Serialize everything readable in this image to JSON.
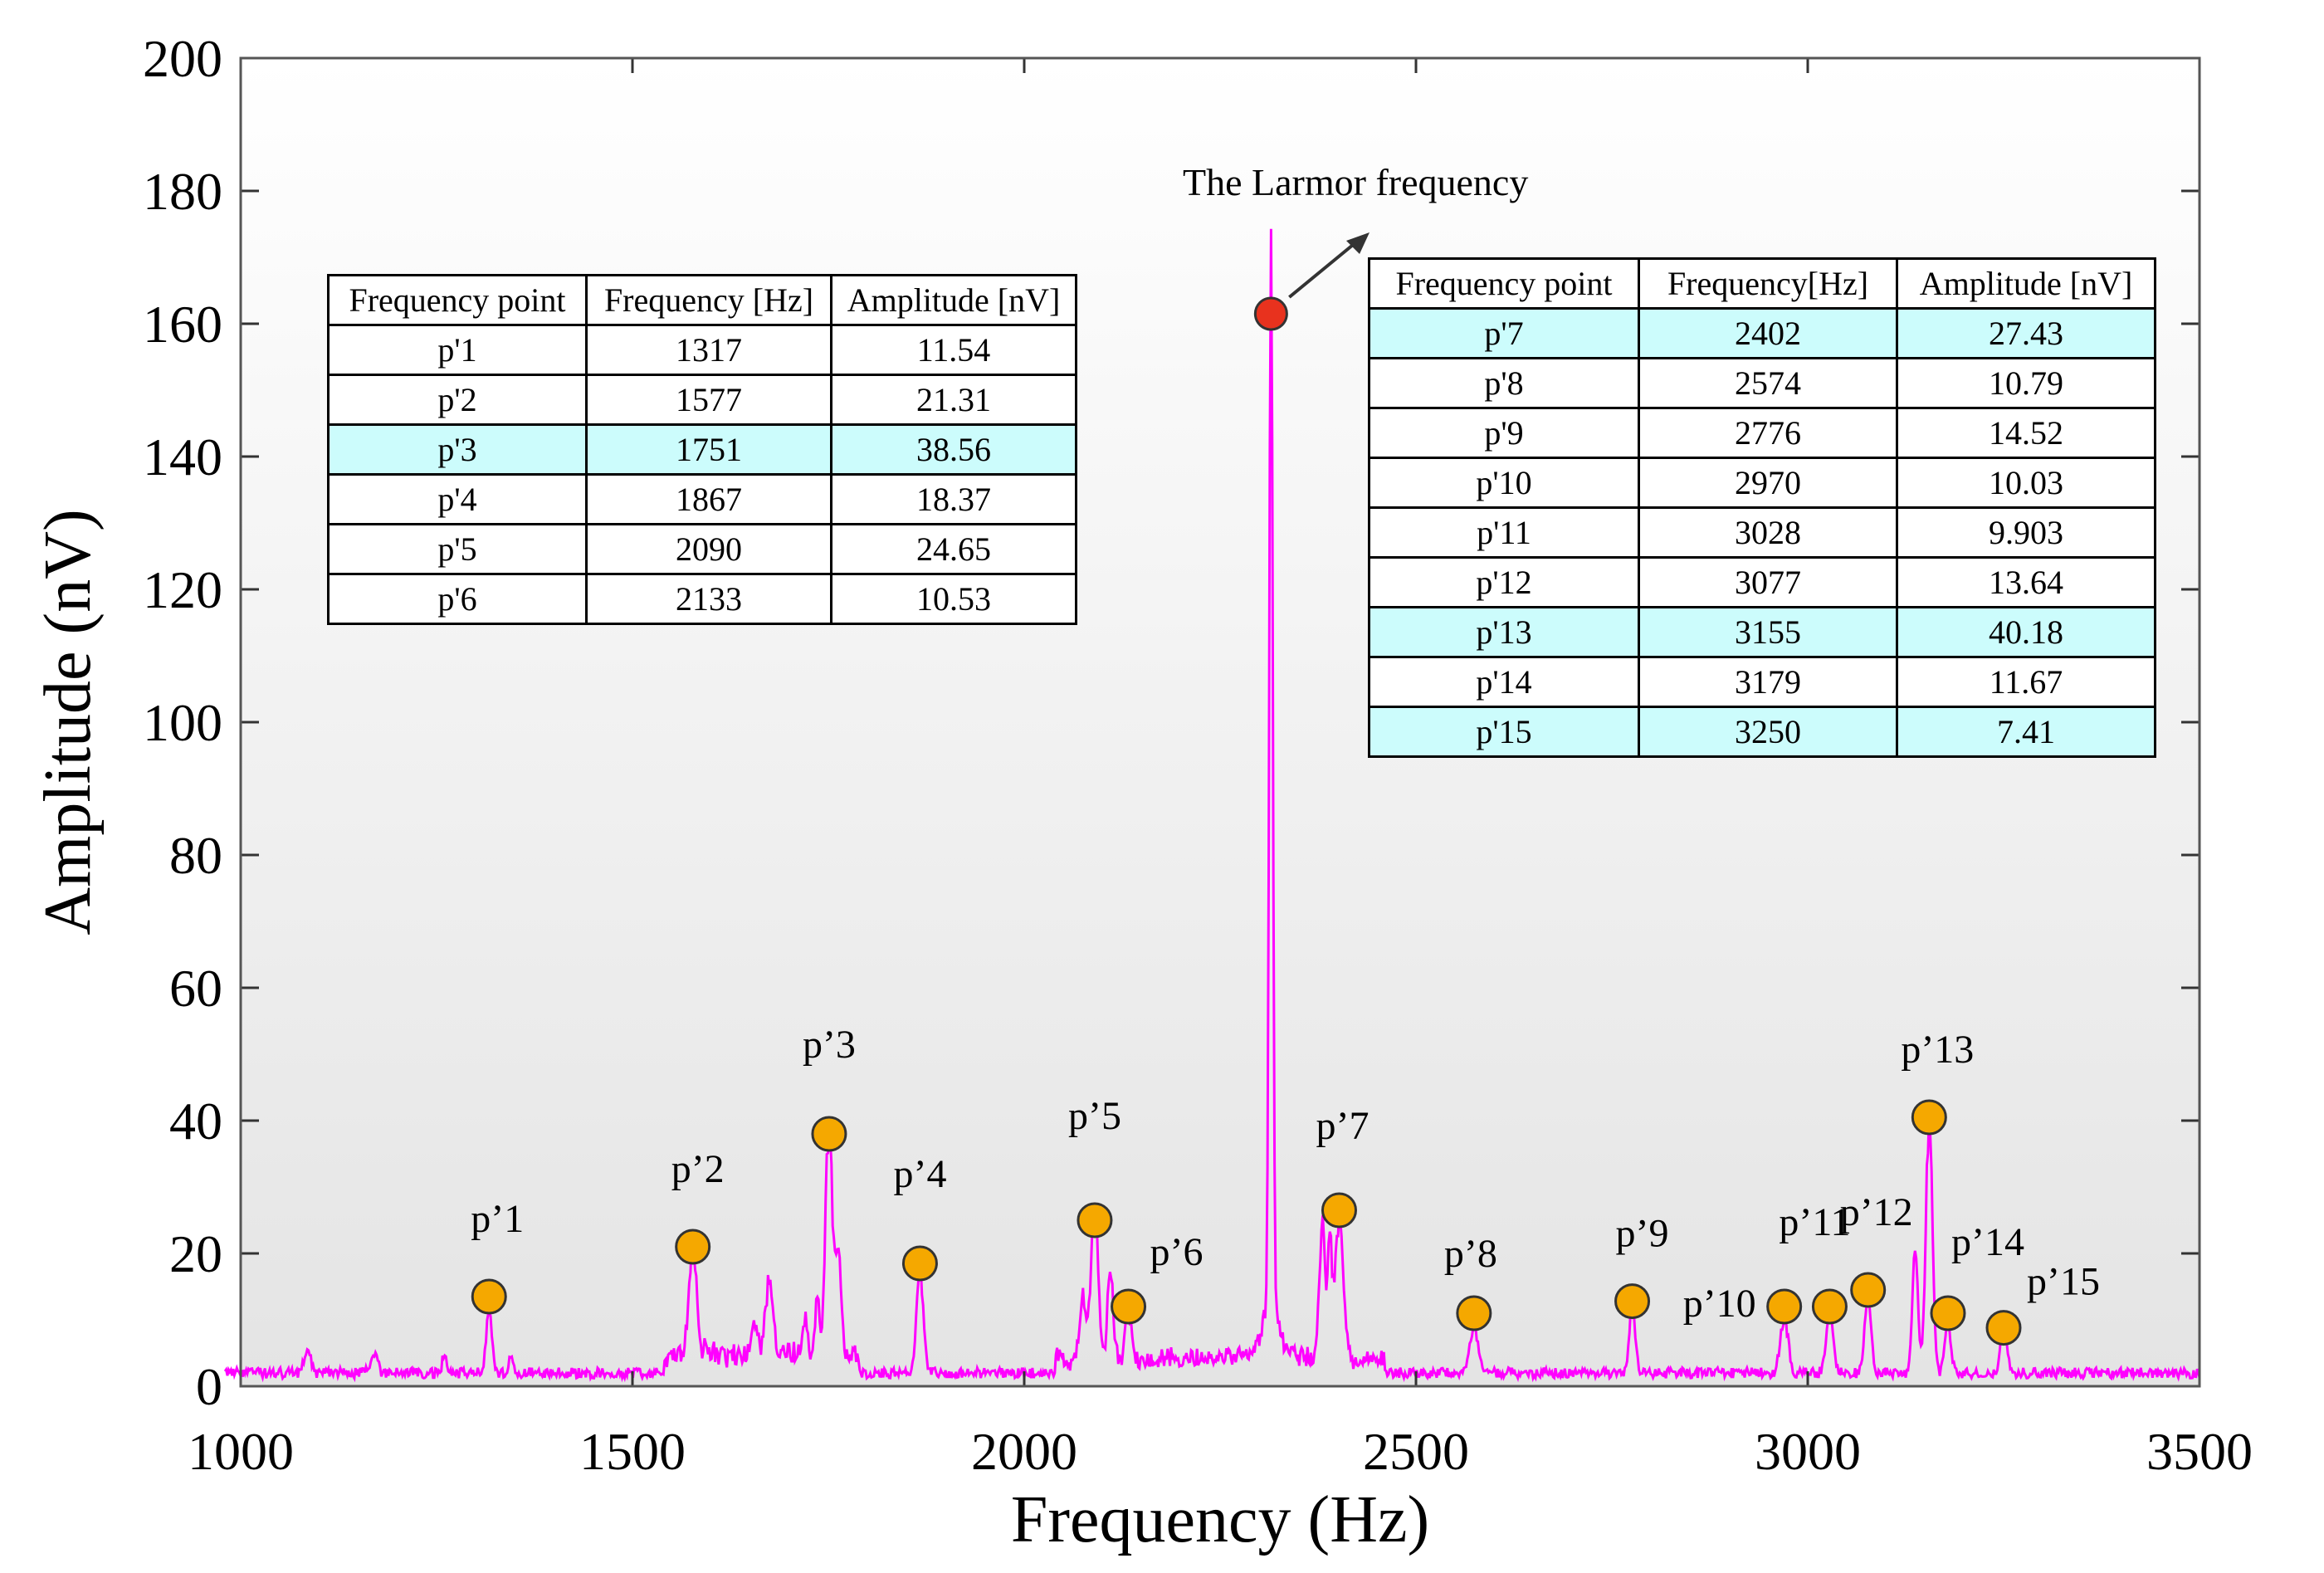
{
  "chart_data": {
    "type": "line",
    "xlabel": "Frequency (Hz)",
    "ylabel": "Amplitude (nV)",
    "xlim": [
      1000,
      3500
    ],
    "ylim": [
      0,
      200
    ],
    "xticks": [
      1000,
      1500,
      2000,
      2500,
      3000,
      3500
    ],
    "yticks": [
      0,
      20,
      40,
      60,
      80,
      100,
      120,
      140,
      160,
      180,
      200
    ],
    "line_color": "#ff00ff",
    "marker_color": "#f5a800",
    "larmor_marker_color": "#e8321e",
    "baseline_level": 1.2,
    "peaks": [
      {
        "label": "p’1",
        "x": 1317,
        "y": 13.5,
        "tip": 10.5,
        "w": 5
      },
      {
        "label": "p’2",
        "x": 1577,
        "y": 21.0,
        "tip": 18,
        "w": 6
      },
      {
        "label": "p’3",
        "x": 1751,
        "y": 38.0,
        "tip": 38,
        "w": 6
      },
      {
        "label": "p’4",
        "x": 1867,
        "y": 18.5,
        "tip": 17,
        "w": 6
      },
      {
        "label": "p’5",
        "x": 2090,
        "y": 25.0,
        "tip": 25,
        "w": 6
      },
      {
        "label": "p’6",
        "x": 2133,
        "y": 12.0,
        "tip": 9,
        "w": 5
      },
      {
        "label": "p’7",
        "x": 2402,
        "y": 26.5,
        "tip": 24,
        "w": 7
      },
      {
        "label": "p’8",
        "x": 2574,
        "y": 11.0,
        "tip": 8,
        "w": 7
      },
      {
        "label": "p’9",
        "x": 2776,
        "y": 12.8,
        "tip": 12,
        "w": 5
      },
      {
        "label": "p’10",
        "x": 2970,
        "y": 12.0,
        "tip": 9,
        "w": 7
      },
      {
        "label": "p’11",
        "x": 3028,
        "y": 12.0,
        "tip": 10,
        "w": 6
      },
      {
        "label": "p’12",
        "x": 3077,
        "y": 14.5,
        "tip": 12,
        "w": 6
      },
      {
        "label": "p’13",
        "x": 3155,
        "y": 40.5,
        "tip": 40,
        "w": 6
      },
      {
        "label": "p’14",
        "x": 3179,
        "y": 11.0,
        "tip": 9,
        "w": 5
      },
      {
        "label": "p’15",
        "x": 3250,
        "y": 8.8,
        "tip": 7,
        "w": 6
      }
    ],
    "extra_bumps": [
      {
        "x": 1085,
        "tip": 4,
        "w": 6
      },
      {
        "x": 1170,
        "tip": 3.5,
        "w": 6
      },
      {
        "x": 1260,
        "tip": 3,
        "w": 4
      },
      {
        "x": 1345,
        "tip": 3,
        "w": 4
      },
      {
        "x": 1675,
        "tip": 11,
        "w": 7
      },
      {
        "x": 1655,
        "tip": 6,
        "w": 5
      },
      {
        "x": 1736,
        "tip": 9,
        "w": 4
      },
      {
        "x": 1720,
        "tip": 6,
        "w": 4
      },
      {
        "x": 1763,
        "tip": 16,
        "w": 5
      },
      {
        "x": 2075,
        "tip": 10,
        "w": 6
      },
      {
        "x": 2110,
        "tip": 14,
        "w": 5
      },
      {
        "x": 2380,
        "tip": 22,
        "w": 5
      },
      {
        "x": 2390,
        "tip": 18,
        "w": 4
      },
      {
        "x": 3137,
        "tip": 20,
        "w": 5
      }
    ],
    "larmor": {
      "x": 2315,
      "y": 161.5,
      "label": "The Larmor frequency"
    }
  },
  "table_left": {
    "headers": [
      "Frequency point",
      "Frequency [Hz]",
      "Amplitude [nV]"
    ],
    "rows": [
      [
        "p'1",
        "1317",
        "11.54"
      ],
      [
        "p'2",
        "1577",
        "21.31"
      ],
      [
        "p'3",
        "1751",
        "38.56"
      ],
      [
        "p'4",
        "1867",
        "18.37"
      ],
      [
        "p'5",
        "2090",
        "24.65"
      ],
      [
        "p'6",
        "2133",
        "10.53"
      ]
    ],
    "highlight_color": "#ccfcfc"
  },
  "table_right": {
    "headers": [
      "Frequency point",
      "Frequency[Hz]",
      "Amplitude [nV]"
    ],
    "rows": [
      [
        "p'7",
        "2402",
        "27.43"
      ],
      [
        "p'8",
        "2574",
        "10.79"
      ],
      [
        "p'9",
        "2776",
        "14.52"
      ],
      [
        "p'10",
        "2970",
        "10.03"
      ],
      [
        "p'11",
        "3028",
        "9.903"
      ],
      [
        "p'12",
        "3077",
        "13.64"
      ],
      [
        "p'13",
        "3155",
        "40.18"
      ],
      [
        "p'14",
        "3179",
        "11.67"
      ],
      [
        "p'15",
        "3250",
        "7.41"
      ]
    ]
  }
}
